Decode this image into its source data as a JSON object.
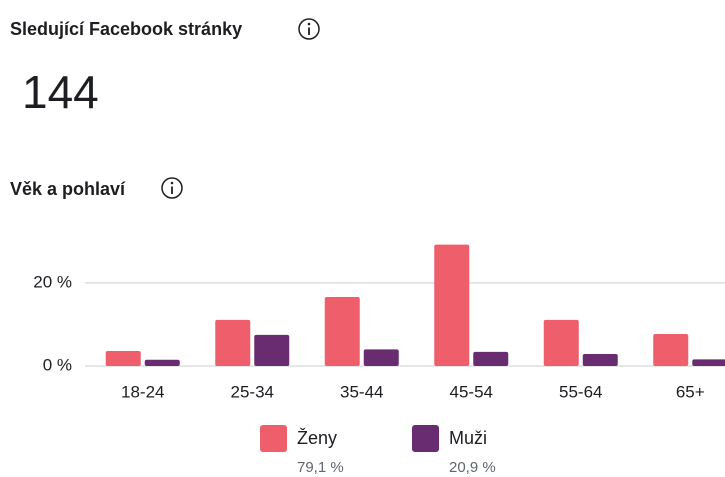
{
  "header": {
    "title": "Sledující Facebook stránky",
    "value": "144"
  },
  "chart_data": {
    "type": "bar",
    "title": "Věk a pohlaví",
    "categories": [
      "18-24",
      "25-34",
      "35-44",
      "45-54",
      "55-64",
      "65+"
    ],
    "series": [
      {
        "name": "Ženy",
        "color": "#ee5f6b",
        "values": [
          3.6,
          11.1,
          16.6,
          29.2,
          11.1,
          7.7
        ],
        "share": 79.1,
        "share_label": "79,1 %"
      },
      {
        "name": "Muži",
        "color": "#6a2c70",
        "values": [
          1.5,
          7.5,
          4.0,
          3.4,
          2.9,
          1.6
        ],
        "share": 20.9,
        "share_label": "20,9 %"
      }
    ],
    "ylim": [
      0,
      32
    ],
    "yticks": [
      {
        "value": 0,
        "label": "0 %"
      },
      {
        "value": 20,
        "label": "20 %"
      }
    ],
    "grid": true
  }
}
